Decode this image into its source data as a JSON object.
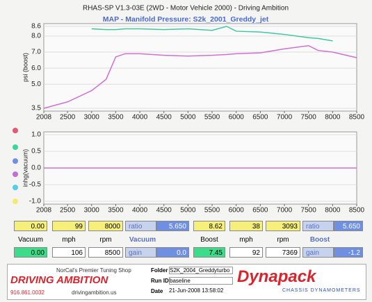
{
  "header": {
    "title": "RHAS-SP V1.3-03E  (2WD - Motor Vehicle 2000) - Driving Ambition"
  },
  "chart_data": [
    {
      "type": "line",
      "title": "MAP - Manifold Pressure: S2k_2001_Greddy_jet",
      "y_label": "psi (boost)",
      "x": [
        2008,
        2500,
        3000,
        3300,
        3500,
        3700,
        4000,
        4500,
        5000,
        5500,
        5800,
        6000,
        6500,
        7000,
        7500,
        7700,
        8000,
        8500
      ],
      "series": [
        {
          "color": "#3cc9a0",
          "values": [
            null,
            null,
            8.45,
            8.4,
            8.4,
            8.45,
            8.45,
            8.4,
            8.45,
            8.35,
            8.6,
            8.3,
            8.25,
            8.1,
            7.9,
            7.85,
            7.7,
            null
          ]
        },
        {
          "color": "#d070d0",
          "values": [
            3.5,
            3.9,
            4.6,
            5.3,
            6.7,
            6.9,
            6.9,
            6.8,
            6.75,
            6.8,
            6.85,
            6.9,
            6.95,
            7.2,
            7.4,
            7.1,
            7.0,
            6.65
          ]
        }
      ],
      "xlim": [
        2008,
        8500
      ],
      "xticks": [
        2008,
        2500,
        3000,
        3500,
        4000,
        4500,
        5000,
        5500,
        6000,
        6500,
        7000,
        7500,
        8000,
        8500
      ],
      "ylim": [
        3.5,
        8.6
      ],
      "yticks": [
        3.5,
        {
          "value": 5,
          "label": "5.0"
        },
        {
          "value": 6,
          "label": "6.0"
        },
        {
          "value": 7,
          "label": "7.0"
        },
        {
          "value": 8,
          "label": "8.0"
        },
        8.6
      ],
      "grid": true
    },
    {
      "type": "line",
      "y_label": "inhg(vacuum)",
      "x": [
        2008,
        8500
      ],
      "series": [
        {
          "color": "#d070d0",
          "values": [
            0,
            0
          ]
        }
      ],
      "xlim": [
        2008,
        8500
      ],
      "xticks": [
        2008,
        2500,
        3000,
        3500,
        4000,
        4500,
        5000,
        5500,
        6000,
        6500,
        7000,
        7500,
        8000,
        8500
      ],
      "ylim": [
        -1,
        1
      ],
      "yticks": [
        {
          "value": -1,
          "label": "-1.0"
        },
        -0.5,
        {
          "value": 0,
          "label": "0.0"
        },
        0.5,
        {
          "value": 1,
          "label": "1.0"
        }
      ],
      "grid": true
    }
  ],
  "readouts": {
    "row1": [
      "0.00",
      "99",
      "8000",
      "ratio",
      "5.650",
      "8.62",
      "38",
      "3093",
      "ratio",
      "5.650"
    ],
    "row2": [
      "Vacuum",
      "mph",
      "rpm",
      "Vacuum",
      "Boost",
      "mph",
      "rpm",
      "Boost"
    ],
    "row3": [
      "0.00",
      "106",
      "8500",
      "gain",
      "0.0",
      "7.45",
      "92",
      "7369",
      "gain",
      "-1.2"
    ]
  },
  "footer": {
    "logo": "DRIVING AMBITION",
    "tagline": "NorCal's Premier Tuning Shop",
    "phone": "916.861.0032",
    "url": "drivingambition.us",
    "folder_label": "Folder",
    "folder": "S2K_2004_Greddyturbo",
    "run_label": "Run ID",
    "run": "baseline",
    "date_label": "Date",
    "date": "21-Jun-2008  13:58:02",
    "brand": "Dynapack",
    "brand_sub": "CHASSIS DYNAMOMETERS"
  }
}
